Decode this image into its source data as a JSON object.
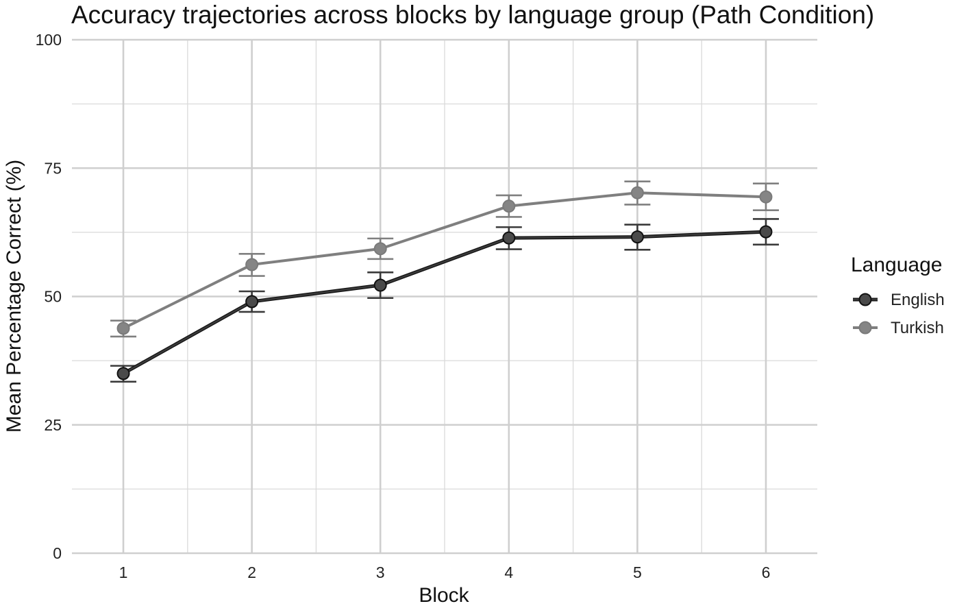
{
  "chart_data": {
    "type": "line",
    "title": "Accuracy trajectories across blocks by language group (Path Condition)",
    "xlabel": "Block",
    "ylabel": "Mean Percentage Correct (%)",
    "x": [
      1,
      2,
      3,
      4,
      5,
      6
    ],
    "xlim": [
      0.6,
      6.4
    ],
    "ylim": [
      0,
      100
    ],
    "yticks": [
      0,
      25,
      50,
      75,
      100
    ],
    "grid": true,
    "legend": {
      "title": "Language",
      "position": "right"
    },
    "series": [
      {
        "name": "English",
        "color": "#3a3a3a",
        "values": [
          35.0,
          49.0,
          52.2,
          61.4,
          61.6,
          62.6
        ],
        "err_low": [
          33.4,
          47.0,
          49.7,
          59.2,
          59.1,
          60.1
        ],
        "err_high": [
          36.5,
          51.0,
          54.7,
          63.5,
          64.0,
          65.1
        ]
      },
      {
        "name": "Turkish",
        "color": "#7f7f7f",
        "values": [
          43.8,
          56.2,
          59.3,
          67.6,
          70.2,
          69.4
        ],
        "err_low": [
          42.2,
          54.0,
          57.3,
          65.5,
          67.9,
          66.8
        ],
        "err_high": [
          45.3,
          58.3,
          61.3,
          69.7,
          72.4,
          72.0
        ]
      }
    ]
  }
}
